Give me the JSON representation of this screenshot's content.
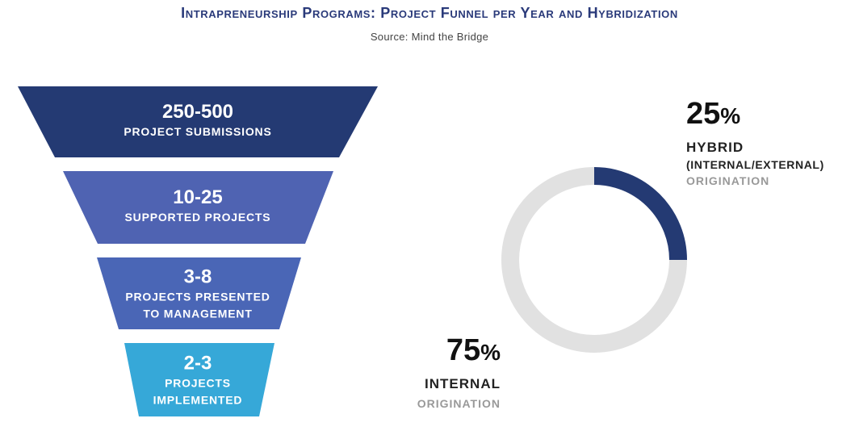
{
  "chart_data": {
    "type": "funnel+donut",
    "title": "Intrapreneurship Programs: Project Funnel per Year and Hybridization",
    "subtitle": "Source: Mind the Bridge",
    "funnel": [
      {
        "value": "250-500",
        "label_lines": [
          "PROJECT SUBMISSIONS"
        ],
        "color": "#243a73"
      },
      {
        "value": "10-25",
        "label_lines": [
          "SUPPORTED PROJECTS"
        ],
        "color": "#4f63b2"
      },
      {
        "value": "3-8",
        "label_lines": [
          "PROJECTS PRESENTED",
          "TO MANAGEMENT"
        ],
        "color": "#4a66b6"
      },
      {
        "value": "2-3",
        "label_lines": [
          "PROJECTS",
          "IMPLEMENTED"
        ],
        "color": "#36a8d8"
      }
    ],
    "donut": [
      {
        "name": "Hybrid",
        "percent": 25,
        "color": "#243a73"
      },
      {
        "name": "Internal",
        "percent": 75,
        "color": "#e1e1e1"
      }
    ],
    "hybrid": {
      "value": "25",
      "unit": "%",
      "label": "HYBRID",
      "label2": "(INTERNAL/EXTERNAL)",
      "sub": "ORIGINATION"
    },
    "internal": {
      "value": "75",
      "unit": "%",
      "label": "INTERNAL",
      "sub": "ORIGINATION"
    }
  }
}
